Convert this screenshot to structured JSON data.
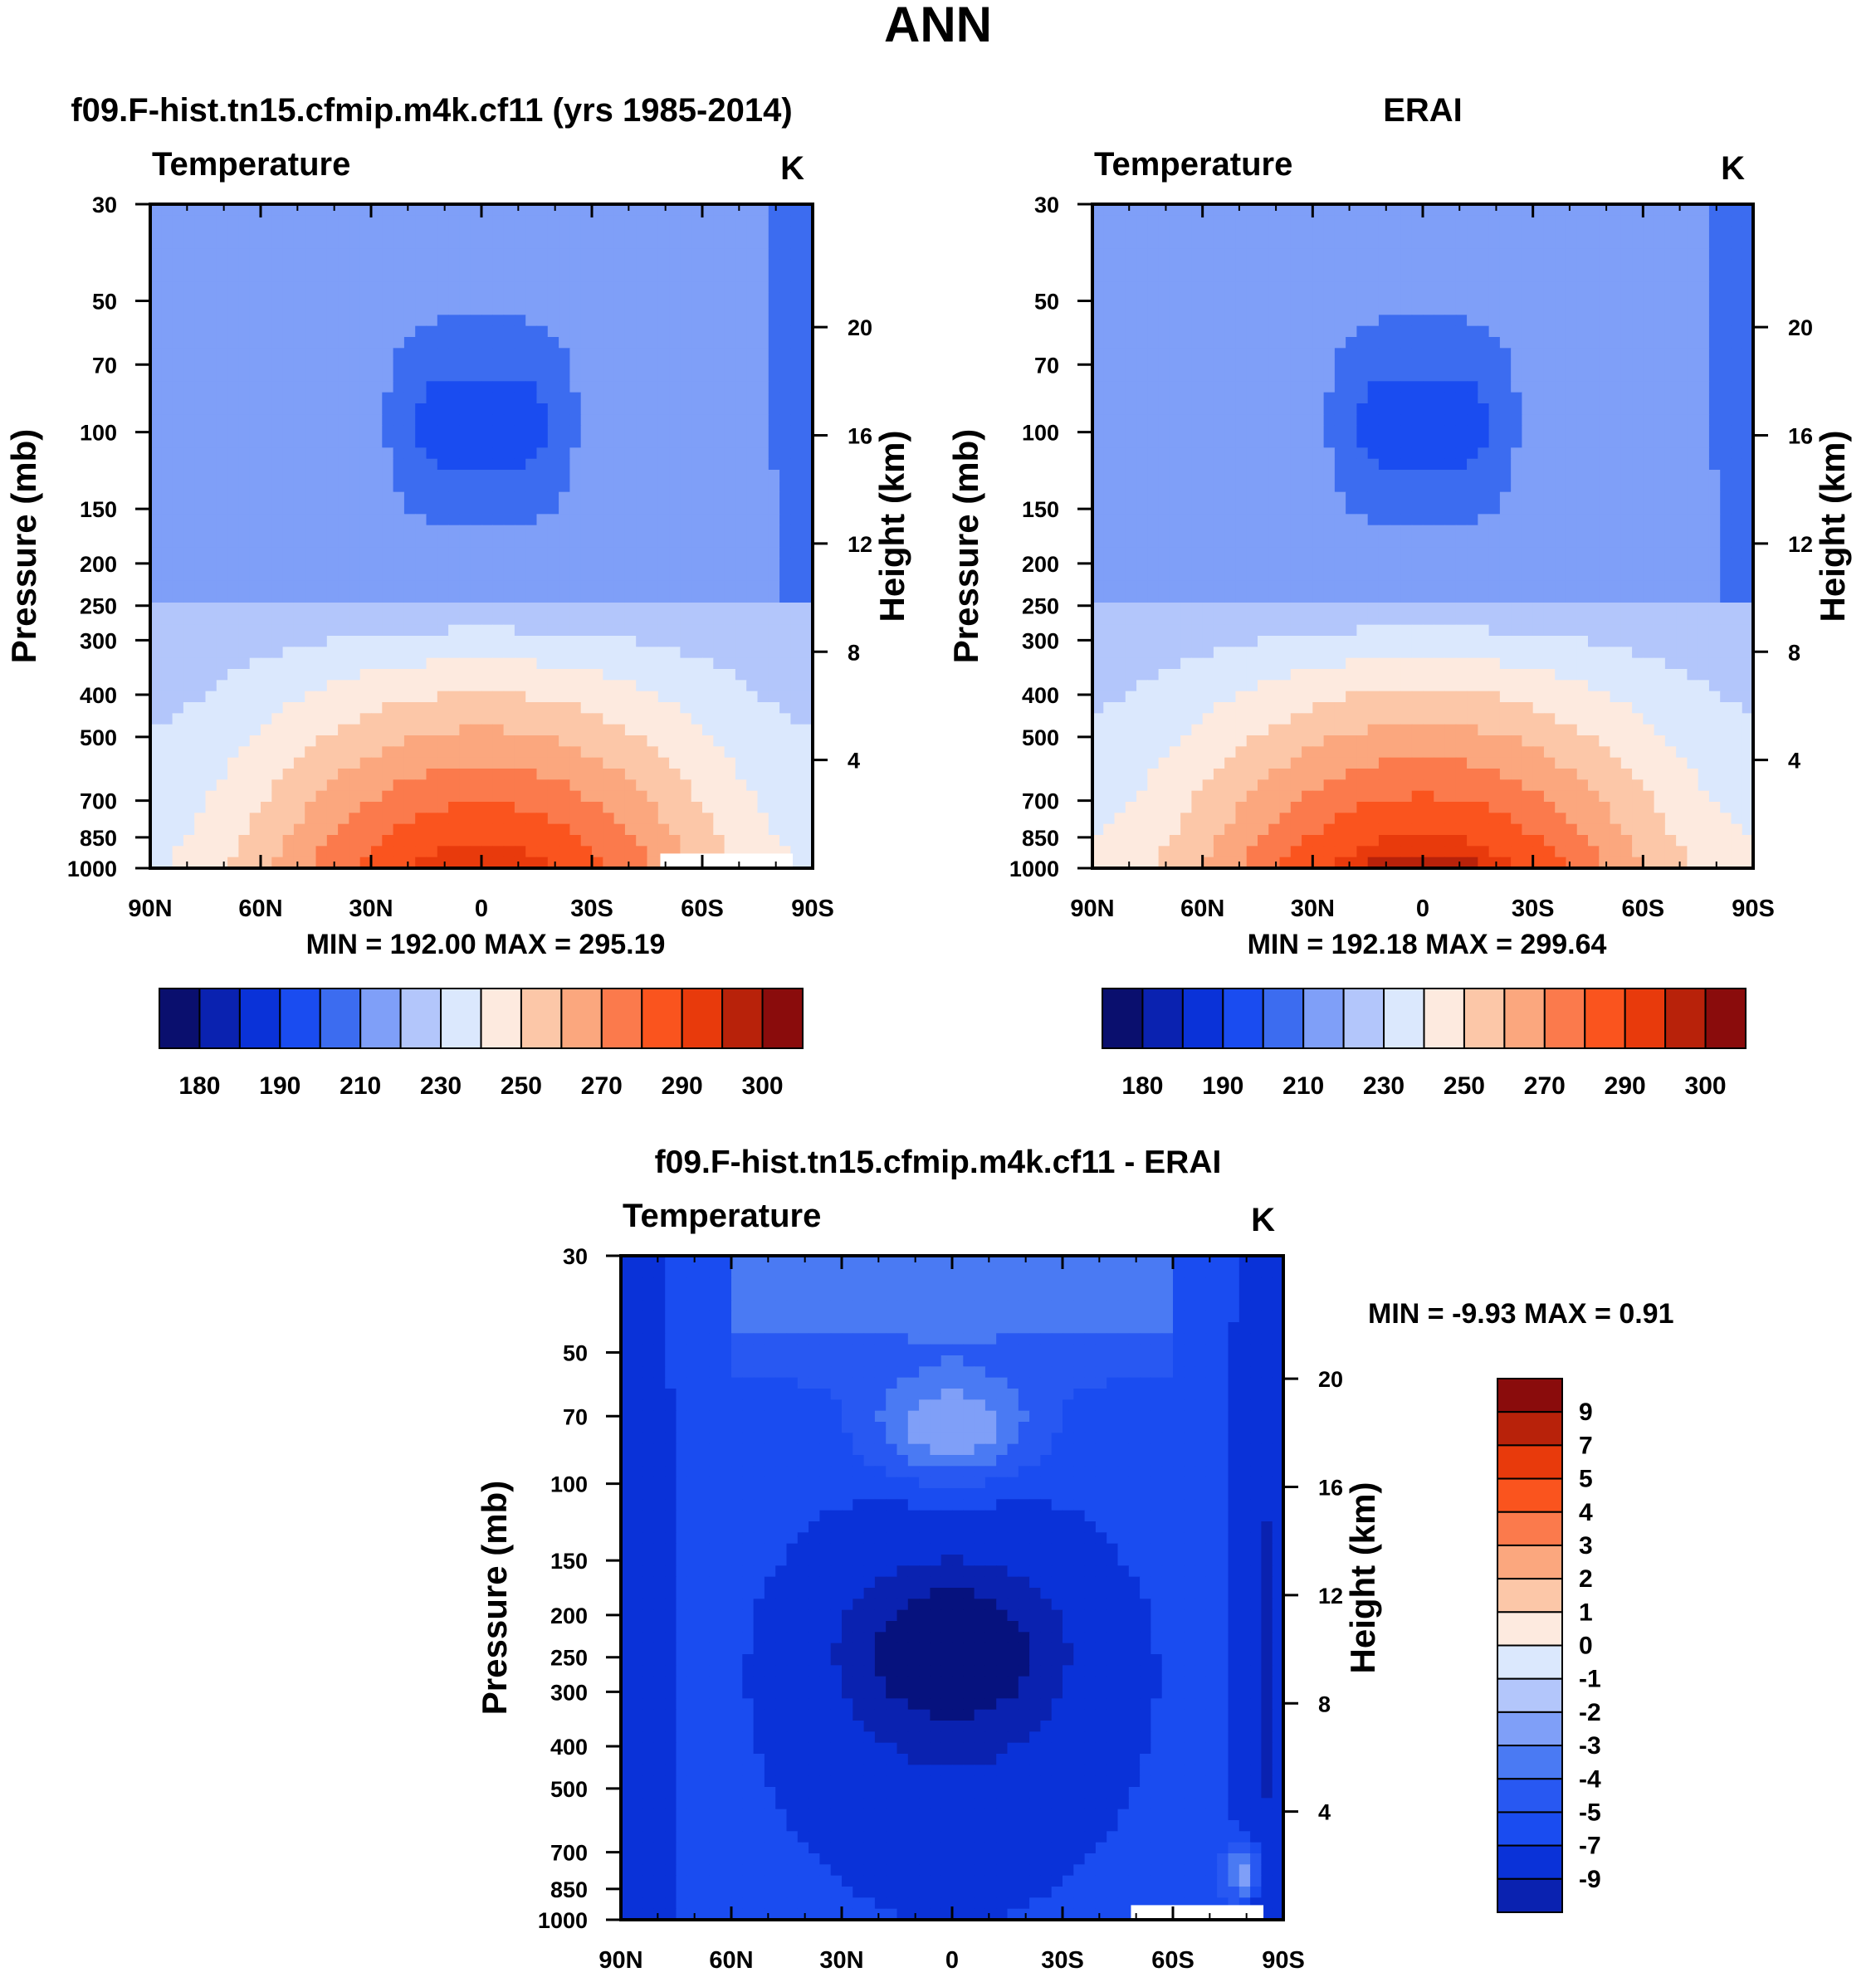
{
  "page_title": "ANN",
  "colors": {
    "temp_palette": [
      "#0a0f6e",
      "#0a22b0",
      "#0a32d8",
      "#1a4cf0",
      "#3c6cf0",
      "#7f9ff8",
      "#b3c6fb",
      "#dbe8fd",
      "#fdeadf",
      "#fcc7a8",
      "#fba77e",
      "#fb7a4c",
      "#fa541e",
      "#e83a0c",
      "#b8220a",
      "#8a0c0c"
    ],
    "diff_palette": [
      "#06127e",
      "#0a22b0",
      "#0a32d8",
      "#1a4cf0",
      "#2858f2",
      "#4a7af3",
      "#7f9ff8",
      "#b3c6fb",
      "#dbe8fd",
      "#fdeadf",
      "#fcc7a8",
      "#fba77e",
      "#fb7a4c",
      "#fa541e",
      "#e83a0c",
      "#b8220a",
      "#8a0c0c"
    ]
  },
  "chart_data": [
    {
      "type": "heatmap",
      "title": "f09.F-hist.tn15.cfmip.m4k.cf11 (yrs 1985-2014)",
      "left_label": "Temperature",
      "unit": "K",
      "ylabel": "Pressure (mb)",
      "ylabel_right": "Height (km)",
      "x_ticks": [
        "90N",
        "60N",
        "30N",
        "0",
        "30S",
        "60S",
        "90S"
      ],
      "y_ticks": [
        "30",
        "50",
        "70",
        "100",
        "150",
        "200",
        "250",
        "300",
        "400",
        "500",
        "700",
        "850",
        "1000"
      ],
      "y_ticks_right": [
        "20",
        "16",
        "12",
        "8",
        "4"
      ],
      "stats": "MIN = 192.00  MAX = 295.19",
      "colorbar_labels": [
        "180",
        "190",
        "210",
        "230",
        "250",
        "270",
        "290",
        "300"
      ],
      "min": 192.0,
      "max": 295.19
    },
    {
      "type": "heatmap",
      "title": "ERAI",
      "left_label": "Temperature",
      "unit": "K",
      "ylabel": "Pressure (mb)",
      "ylabel_right": "Height (km)",
      "x_ticks": [
        "90N",
        "60N",
        "30N",
        "0",
        "30S",
        "60S",
        "90S"
      ],
      "y_ticks": [
        "30",
        "50",
        "70",
        "100",
        "150",
        "200",
        "250",
        "300",
        "400",
        "500",
        "700",
        "850",
        "1000"
      ],
      "y_ticks_right": [
        "20",
        "16",
        "12",
        "8",
        "4"
      ],
      "stats": "MIN = 192.18  MAX = 299.64",
      "colorbar_labels": [
        "180",
        "190",
        "210",
        "230",
        "250",
        "270",
        "290",
        "300"
      ],
      "min": 192.18,
      "max": 299.64
    },
    {
      "type": "heatmap",
      "title": "f09.F-hist.tn15.cfmip.m4k.cf11 - ERAI",
      "left_label": "Temperature",
      "unit": "K",
      "ylabel": "Pressure (mb)",
      "ylabel_right": "Height (km)",
      "x_ticks": [
        "90N",
        "60N",
        "30N",
        "0",
        "30S",
        "60S",
        "90S"
      ],
      "y_ticks": [
        "30",
        "50",
        "70",
        "100",
        "150",
        "200",
        "250",
        "300",
        "400",
        "500",
        "700",
        "850",
        "1000"
      ],
      "y_ticks_right": [
        "20",
        "16",
        "12",
        "8",
        "4"
      ],
      "stats": "MIN =  -9.93  MAX =   0.91",
      "colorbar_labels": [
        "9",
        "7",
        "5",
        "4",
        "3",
        "2",
        "1",
        "0",
        "-1",
        "-2",
        "-3",
        "-4",
        "-5",
        "-7",
        "-9"
      ],
      "min": -9.93,
      "max": 0.91
    }
  ]
}
